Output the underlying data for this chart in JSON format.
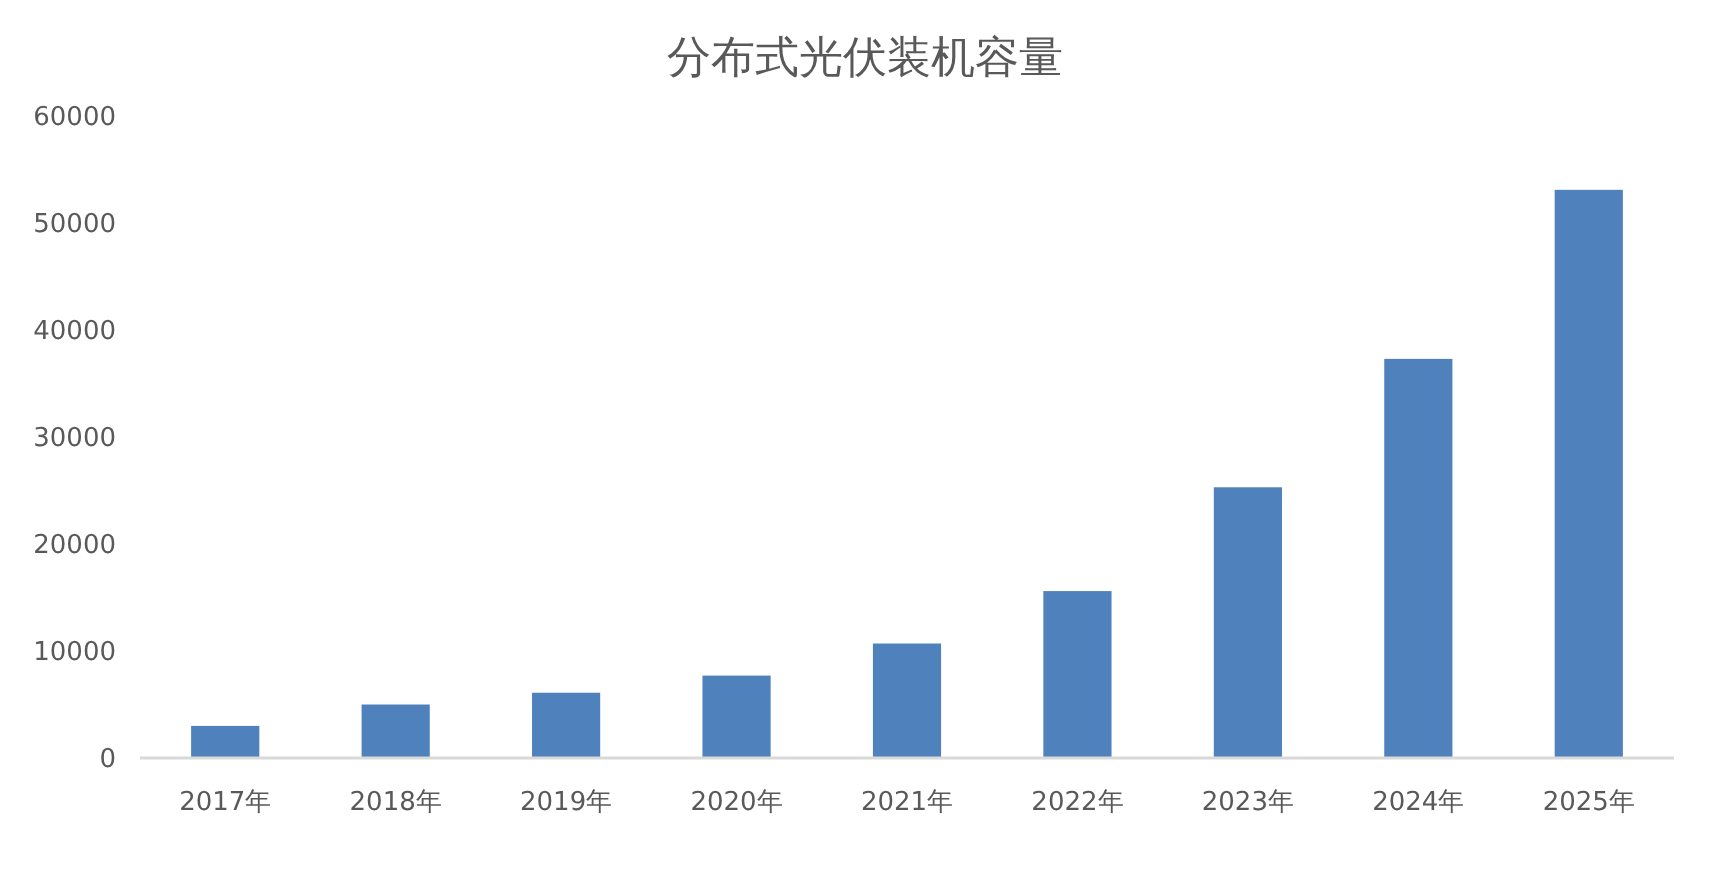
{
  "chart_data": {
    "type": "bar",
    "title": "分布式光伏装机容量",
    "categories": [
      "2017年",
      "2018年",
      "2019年",
      "2020年",
      "2021年",
      "2022年",
      "2023年",
      "2024年",
      "2025年"
    ],
    "values": [
      3000,
      5000,
      6100,
      7700,
      10700,
      15600,
      25300,
      37300,
      53100
    ],
    "color": "#4f81bd",
    "ylim": [
      0,
      60000
    ],
    "yticks": [
      0,
      10000,
      20000,
      30000,
      40000,
      50000,
      60000
    ],
    "grid": false
  }
}
